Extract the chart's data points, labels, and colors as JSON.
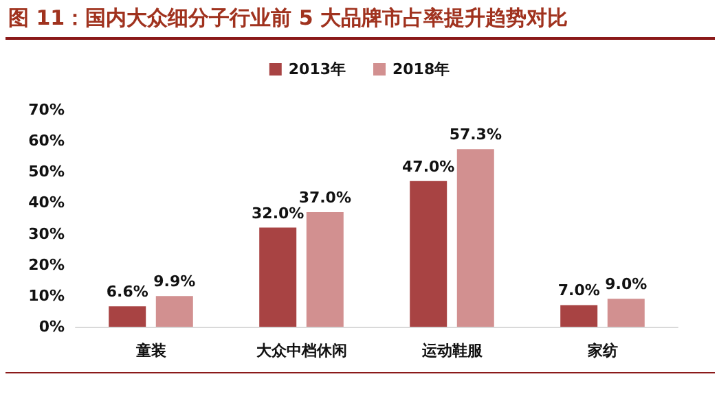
{
  "chart_data": {
    "type": "bar",
    "title": "图 11：国内大众细分子行业前 5 大品牌市占率提升趋势对比",
    "categories": [
      "童装",
      "大众中档休闲",
      "运动鞋服",
      "家纺"
    ],
    "series": [
      {
        "name": "2013年",
        "color": "#a84343",
        "values": [
          6.6,
          32.0,
          47.0,
          7.0
        ],
        "value_labels": [
          "6.6%",
          "32.0%",
          "47.0%",
          "7.0%"
        ]
      },
      {
        "name": "2018年",
        "color": "#d29090",
        "values": [
          9.9,
          37.0,
          57.3,
          9.0
        ],
        "value_labels": [
          "9.9%",
          "37.0%",
          "57.3%",
          "9.0%"
        ]
      }
    ],
    "ylim": [
      0,
      70
    ],
    "yticks": [
      {
        "value": 0,
        "label": "0%"
      },
      {
        "value": 10,
        "label": "10%"
      },
      {
        "value": 20,
        "label": "20%"
      },
      {
        "value": 30,
        "label": "30%"
      },
      {
        "value": 40,
        "label": "40%"
      },
      {
        "value": 50,
        "label": "50%"
      },
      {
        "value": 60,
        "label": "60%"
      },
      {
        "value": 70,
        "label": "70%"
      }
    ],
    "grid": false,
    "legend": "top"
  }
}
